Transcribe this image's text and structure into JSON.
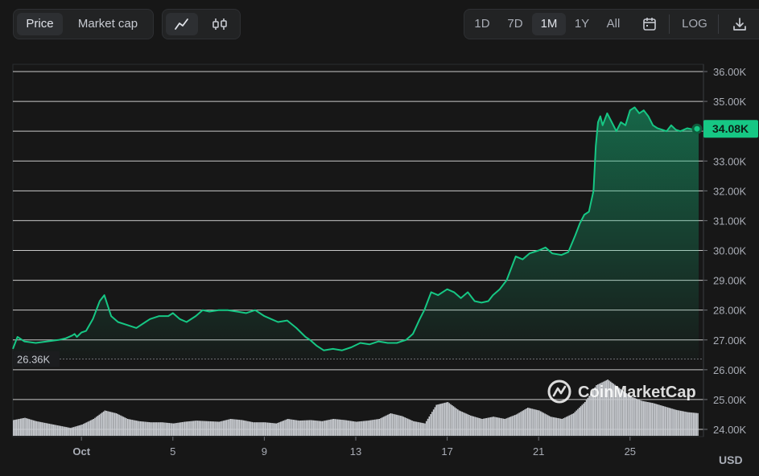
{
  "toolbar": {
    "metric_tabs": [
      {
        "label": "Price",
        "active": true
      },
      {
        "label": "Market cap",
        "active": false
      }
    ],
    "chart_type_icons": [
      "line-chart-icon",
      "candlestick-icon"
    ],
    "ranges": [
      {
        "label": "1D",
        "active": false
      },
      {
        "label": "7D",
        "active": false
      },
      {
        "label": "1M",
        "active": true
      },
      {
        "label": "1Y",
        "active": false
      },
      {
        "label": "All",
        "active": false
      }
    ],
    "calendar_icon": "calendar-icon",
    "log_label": "LOG",
    "download_icon": "download-icon"
  },
  "watermark": "CoinMarketCap",
  "currency": "USD",
  "colors": {
    "line": "#16c784",
    "background": "#171717",
    "grid": "#e8e8e8",
    "volume": "#c9ccd1",
    "badge_text": "#0d1f17"
  },
  "chart_data": {
    "type": "area",
    "ylim": [
      24000,
      36000
    ],
    "y_ticks": [
      "36.00K",
      "35.00K",
      "34.00K",
      "33.00K",
      "32.00K",
      "31.00K",
      "30.00K",
      "29.00K",
      "28.00K",
      "27.00K",
      "26.00K",
      "25.00K",
      "24.00K"
    ],
    "y_tick_values": [
      36000,
      35000,
      34000,
      33000,
      32000,
      31000,
      30000,
      29000,
      28000,
      27000,
      26000,
      25000,
      24000
    ],
    "x_ticks": [
      "Oct",
      "5",
      "9",
      "13",
      "17",
      "21",
      "25"
    ],
    "x_tick_days": [
      1,
      5,
      9,
      13,
      17,
      21,
      25
    ],
    "xlim": [
      -2.0,
      28.0
    ],
    "current_price_label": "34.08K",
    "current_price": 34080,
    "open_price_label": "26.36K",
    "open_price": 26360,
    "grid": true,
    "price_series": {
      "day": [
        -2.0,
        -1.8,
        -1.5,
        -1.0,
        -0.5,
        0.0,
        0.3,
        0.6,
        0.7,
        0.8,
        1.0,
        1.2,
        1.5,
        1.8,
        2.0,
        2.3,
        2.6,
        3.0,
        3.4,
        3.8,
        4.0,
        4.4,
        4.8,
        5.0,
        5.3,
        5.6,
        6.0,
        6.3,
        6.6,
        7.0,
        7.4,
        7.8,
        8.2,
        8.6,
        8.8,
        9.0,
        9.3,
        9.6,
        10.0,
        10.4,
        10.8,
        11.0,
        11.3,
        11.6,
        12.0,
        12.4,
        12.8,
        13.2,
        13.6,
        14.0,
        14.4,
        14.8,
        15.0,
        15.2,
        15.5,
        15.8,
        16.0,
        16.3,
        16.6,
        17.0,
        17.3,
        17.6,
        17.9,
        18.2,
        18.5,
        18.8,
        19.0,
        19.3,
        19.6,
        20.0,
        20.3,
        20.6,
        21.0,
        21.3,
        21.6,
        22.0,
        22.3,
        22.6,
        22.8,
        23.0,
        23.2,
        23.4,
        23.5,
        23.6,
        23.7,
        23.8,
        24.0,
        24.2,
        24.4,
        24.6,
        24.8,
        25.0,
        25.2,
        25.4,
        25.6,
        25.8,
        26.0,
        26.2,
        26.4,
        26.6,
        26.8,
        27.0,
        27.2,
        27.5,
        27.8,
        28.0
      ],
      "price": [
        26700,
        27100,
        26950,
        26900,
        26950,
        27000,
        27050,
        27150,
        27200,
        27100,
        27250,
        27300,
        27700,
        28300,
        28500,
        27800,
        27600,
        27500,
        27400,
        27600,
        27700,
        27800,
        27800,
        27900,
        27700,
        27600,
        27800,
        28000,
        27950,
        28000,
        28000,
        27950,
        27900,
        28000,
        27900,
        27800,
        27700,
        27600,
        27650,
        27400,
        27100,
        27000,
        26800,
        26650,
        26700,
        26650,
        26750,
        26900,
        26850,
        26950,
        26900,
        26900,
        26950,
        27000,
        27200,
        27700,
        28000,
        28600,
        28500,
        28700,
        28600,
        28400,
        28600,
        28300,
        28250,
        28300,
        28500,
        28700,
        29000,
        29800,
        29700,
        29900,
        30000,
        30100,
        29900,
        29850,
        29950,
        30500,
        30900,
        31200,
        31300,
        32000,
        33500,
        34300,
        34500,
        34200,
        34600,
        34300,
        34000,
        34300,
        34200,
        34700,
        34800,
        34600,
        34700,
        34500,
        34200,
        34100,
        34050,
        34000,
        34200,
        34050,
        34000,
        34100,
        34050,
        34080
      ]
    },
    "volume_series": {
      "day": [
        -2.0,
        -1.5,
        -1.0,
        -0.5,
        0.0,
        0.5,
        1.0,
        1.5,
        2.0,
        2.5,
        3.0,
        3.5,
        4.0,
        4.5,
        5.0,
        5.5,
        6.0,
        6.5,
        7.0,
        7.5,
        8.0,
        8.5,
        9.0,
        9.5,
        10.0,
        10.5,
        11.0,
        11.5,
        12.0,
        12.5,
        13.0,
        13.5,
        14.0,
        14.5,
        15.0,
        15.5,
        16.0,
        16.5,
        17.0,
        17.5,
        18.0,
        18.5,
        19.0,
        19.5,
        20.0,
        20.5,
        21.0,
        21.5,
        22.0,
        22.5,
        23.0,
        23.5,
        24.0,
        24.5,
        25.0,
        25.5,
        26.0,
        26.5,
        27.0,
        27.5,
        28.0
      ],
      "volume": [
        0.28,
        0.32,
        0.26,
        0.22,
        0.18,
        0.14,
        0.2,
        0.3,
        0.45,
        0.4,
        0.3,
        0.26,
        0.24,
        0.24,
        0.22,
        0.25,
        0.27,
        0.26,
        0.25,
        0.3,
        0.28,
        0.24,
        0.24,
        0.22,
        0.3,
        0.27,
        0.28,
        0.26,
        0.3,
        0.28,
        0.25,
        0.27,
        0.3,
        0.4,
        0.35,
        0.26,
        0.22,
        0.55,
        0.6,
        0.45,
        0.36,
        0.3,
        0.34,
        0.3,
        0.38,
        0.5,
        0.45,
        0.34,
        0.3,
        0.4,
        0.6,
        0.9,
        1.0,
        0.85,
        0.7,
        0.62,
        0.58,
        0.52,
        0.46,
        0.42,
        0.4
      ]
    }
  }
}
